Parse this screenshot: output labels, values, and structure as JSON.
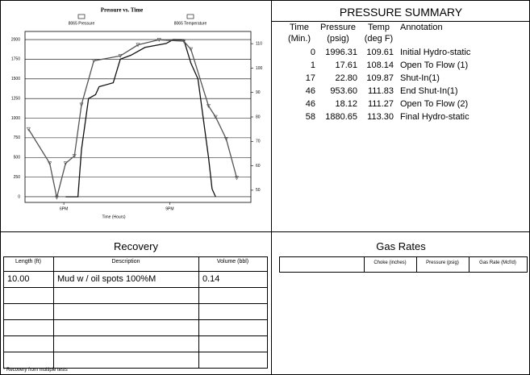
{
  "chart": {
    "type": "line",
    "title": "Pressure vs. Time",
    "x_label": "Time (Hours)",
    "xlim": [
      16.9,
      23.3
    ],
    "xticks": [
      {
        "value": 18,
        "label": "6PM"
      },
      {
        "value": 21,
        "label": "9PM"
      }
    ],
    "ylim": [
      -72,
      2103
    ],
    "yticks": [
      0,
      250,
      500,
      750,
      1000,
      1250,
      1500,
      1750,
      2000
    ],
    "y2lim": [
      45,
      115
    ],
    "y2ticks": [
      50,
      60,
      70,
      80,
      90,
      100,
      110
    ],
    "grid": true,
    "series": [
      {
        "name": "8065 Pressure",
        "color": "#111111",
        "marker": "none",
        "x": [
          18.05,
          18.4,
          18.5,
          18.7,
          18.9,
          19.0,
          19.4,
          19.6,
          19.9,
          20.3,
          20.9,
          21.1,
          21.4,
          21.6,
          21.8,
          21.95,
          22.1,
          22.2,
          22.3
        ],
        "values": [
          0,
          0,
          600,
          1250,
          1300,
          1400,
          1450,
          1750,
          1800,
          1900,
          1950,
          2000,
          1996,
          1700,
          1500,
          1000,
          500,
          100,
          0
        ]
      },
      {
        "name": "8065 Temperature",
        "color": "#555555",
        "marker": "triangle",
        "axis": "y2",
        "x": [
          17.0,
          17.6,
          17.8,
          18.05,
          18.3,
          18.5,
          18.85,
          19.6,
          20.1,
          20.7,
          21.4,
          21.6,
          22.1,
          22.3,
          22.6,
          22.9
        ],
        "values": [
          75,
          61,
          47,
          61,
          64,
          85,
          103,
          105,
          109.5,
          111.6,
          111,
          107.7,
          84.5,
          80,
          71,
          55
        ]
      }
    ]
  },
  "summary": {
    "title": "PRESSURE SUMMARY",
    "columns": [
      [
        "Time",
        "(Min.)"
      ],
      [
        "Pressure",
        "(psig)"
      ],
      [
        "Temp",
        "(deg F)"
      ],
      [
        "Annotation"
      ]
    ],
    "rows": [
      [
        "0",
        "1996.31",
        "109.61",
        "Initial Hydro-static"
      ],
      [
        "1",
        "17.61",
        "108.14",
        "Open To Flow (1)"
      ],
      [
        "17",
        "22.80",
        "109.87",
        "Shut-In(1)"
      ],
      [
        "46",
        "953.60",
        "111.83",
        "End Shut-In(1)"
      ],
      [
        "46",
        "18.12",
        "111.27",
        "Open To Flow (2)"
      ],
      [
        "58",
        "1880.65",
        "113.30",
        "Final Hydro-static"
      ]
    ]
  },
  "recovery": {
    "title": "Recovery",
    "columns": [
      "Length (ft)",
      "Description",
      "Volume (bbl)"
    ],
    "rows": [
      [
        "10.00",
        "Mud w / oil spots 100%M",
        "0.14"
      ]
    ],
    "footnote": "* Recovery from multiple tests"
  },
  "gas_rates": {
    "title": "Gas Rates",
    "columns": [
      "Choke (inches)",
      "Pressure (psig)",
      "Gas Rate (Mcf/d)"
    ]
  }
}
